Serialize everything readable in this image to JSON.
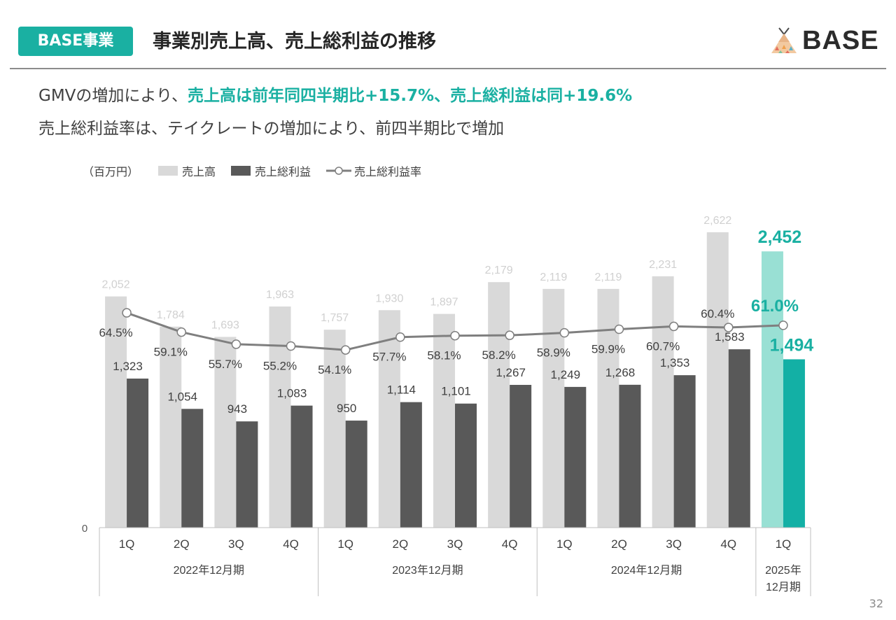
{
  "header": {
    "badge": "BASE事業",
    "title": "事業別売上高、売上総利益の推移",
    "logo_text": "BASE"
  },
  "lead": {
    "line1_prefix": "GMVの増加により、",
    "line1_highlight": "売上高は前年同四半期比+15.7%、売上総利益は同+19.6%",
    "line2": "売上総利益率は、テイクレートの増加により、前四半期比で増加"
  },
  "legend": {
    "unit": "（百万円）",
    "sales": "売上高",
    "gross_profit": "売上総利益",
    "margin": "売上総利益率"
  },
  "page_number": "32",
  "colors": {
    "accent": "#1ab0a2",
    "sales_bar": "#d9d9d9",
    "profit_bar": "#595959",
    "latest_sales_bar": "#99e0d4",
    "latest_profit_bar": "#13b0a5",
    "margin_line": "#7f7f7f"
  },
  "chart_data": {
    "type": "bar",
    "categories": [
      "1Q",
      "2Q",
      "3Q",
      "4Q",
      "1Q",
      "2Q",
      "3Q",
      "4Q",
      "1Q",
      "2Q",
      "3Q",
      "4Q",
      "1Q"
    ],
    "period_groups": [
      {
        "label": "2022年12月期",
        "count": 4
      },
      {
        "label": "2023年12月期",
        "count": 4
      },
      {
        "label": "2024年12月期",
        "count": 4
      },
      {
        "label": "2025年\n12月期",
        "count": 1
      }
    ],
    "series": [
      {
        "name": "売上高",
        "type": "bar",
        "values": [
          2052,
          1784,
          1693,
          1963,
          1757,
          1930,
          1897,
          2179,
          2119,
          2119,
          2231,
          2622,
          2452
        ],
        "labels": [
          "2,052",
          "1,784",
          "1,693",
          "1,963",
          "1,757",
          "1,930",
          "1,897",
          "2,179",
          "2,119",
          "2,119",
          "2,231",
          "2,622",
          "2,452"
        ]
      },
      {
        "name": "売上総利益",
        "type": "bar",
        "values": [
          1323,
          1054,
          943,
          1083,
          950,
          1114,
          1101,
          1267,
          1249,
          1268,
          1353,
          1583,
          1494
        ],
        "labels": [
          "1,323",
          "1,054",
          "943",
          "1,083",
          "950",
          "1,114",
          "1,101",
          "1,267",
          "1,249",
          "1,268",
          "1,353",
          "1,583",
          "1,494"
        ]
      },
      {
        "name": "売上総利益率",
        "type": "line",
        "values": [
          64.5,
          59.1,
          55.7,
          55.2,
          54.1,
          57.7,
          58.1,
          58.2,
          58.9,
          59.9,
          60.7,
          60.4,
          61.0
        ],
        "labels": [
          "64.5%",
          "59.1%",
          "55.7%",
          "55.2%",
          "54.1%",
          "57.7%",
          "58.1%",
          "58.2%",
          "58.9%",
          "59.9%",
          "60.7%",
          "60.4%",
          "61.0%"
        ]
      }
    ],
    "y_axis_label": "0",
    "highlight_last": true
  }
}
